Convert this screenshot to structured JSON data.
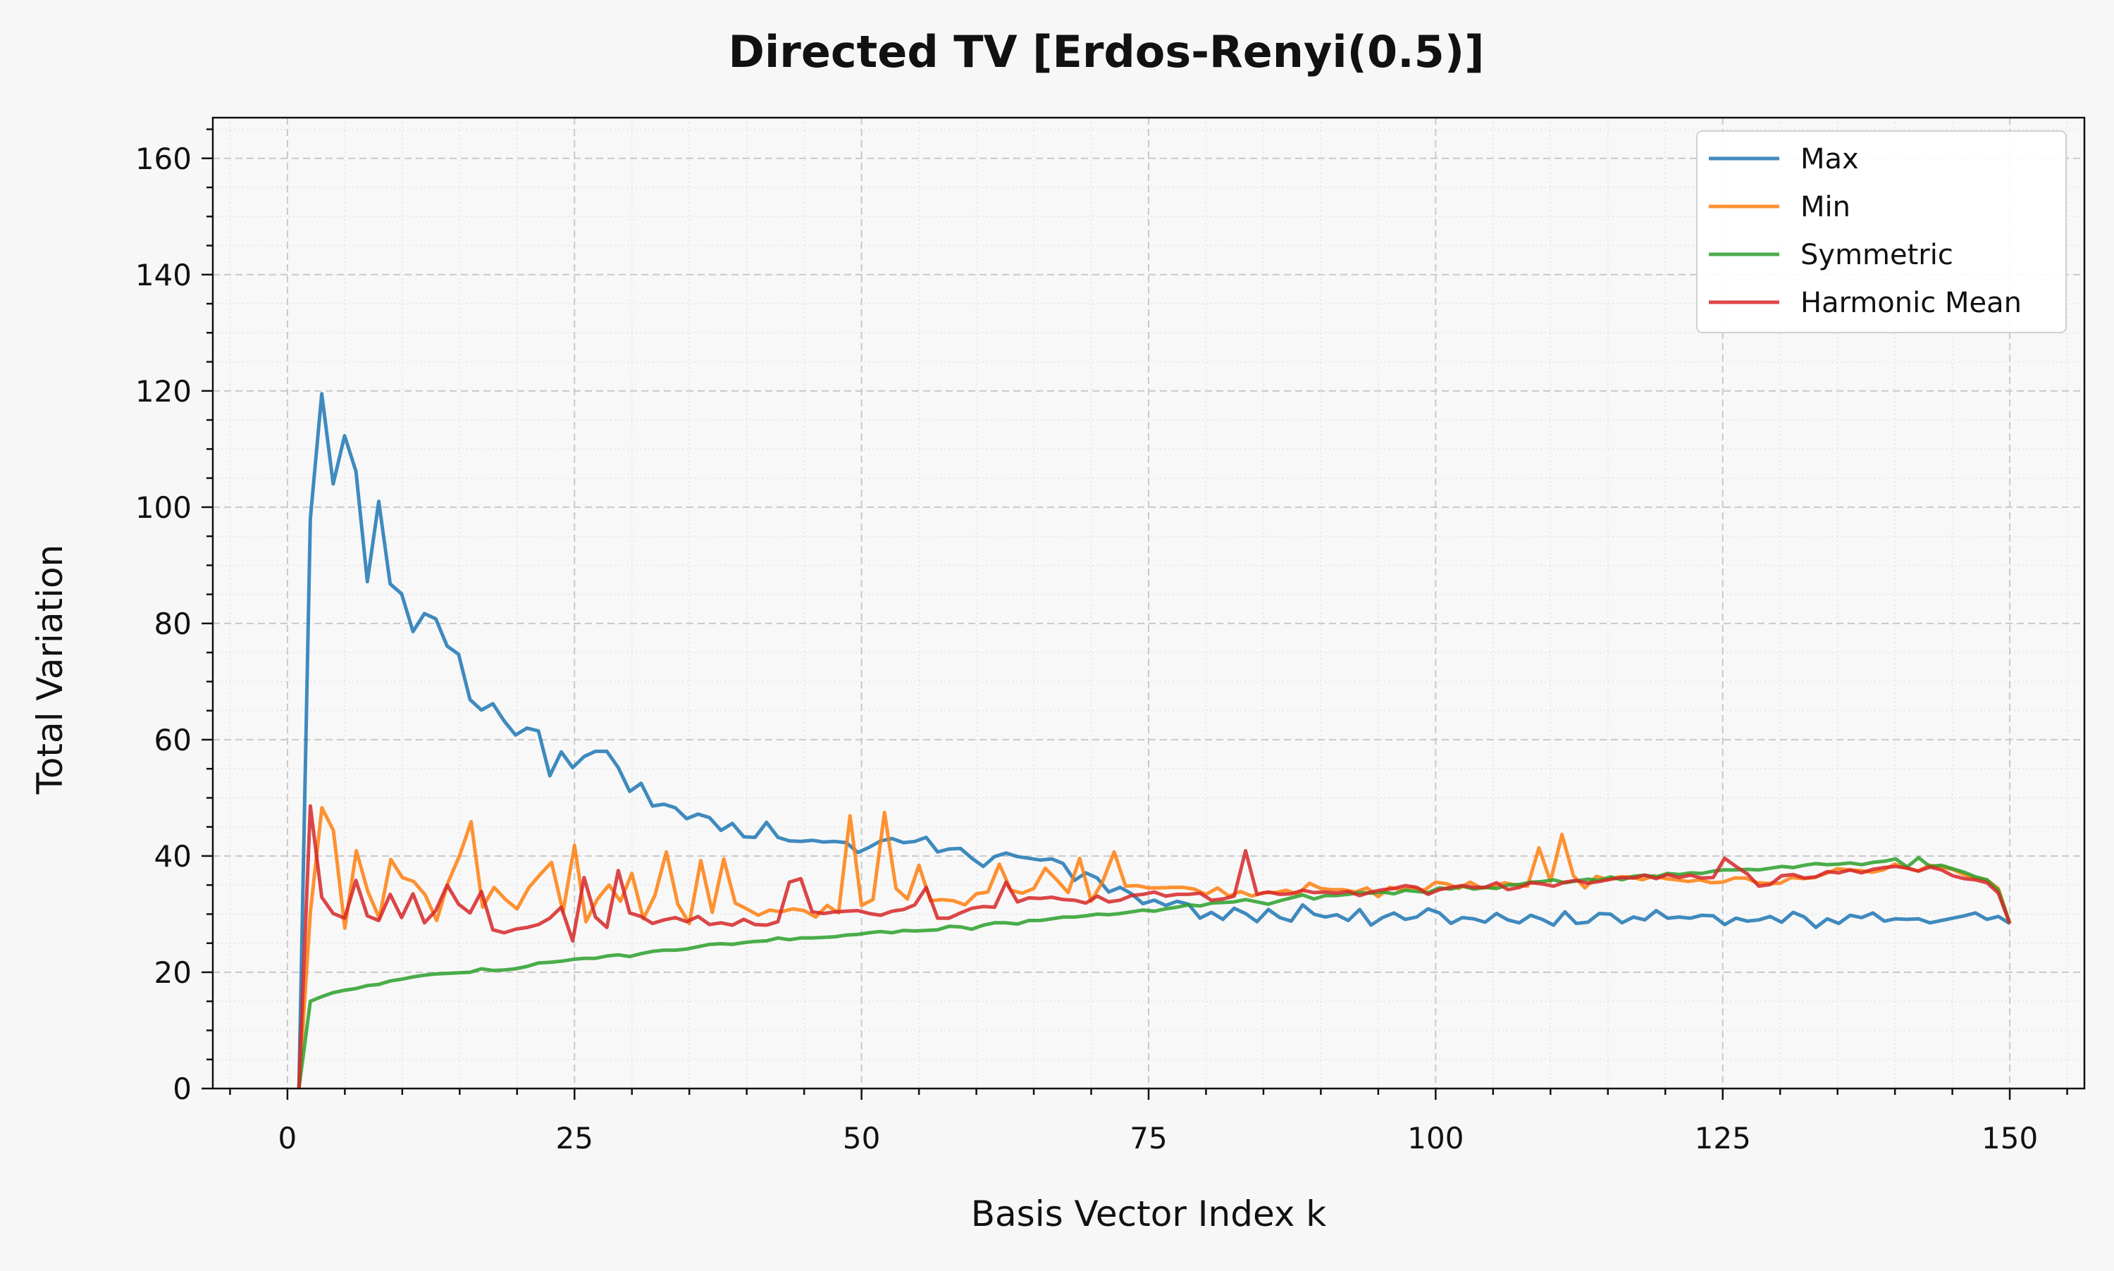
{
  "chart_data": {
    "type": "line",
    "title": "Directed TV [Erdos-Renyi(0.5)]",
    "xlabel": "Basis Vector Index k",
    "ylabel": "Total Variation",
    "xlim": [
      -6.5,
      156.5
    ],
    "ylim": [
      0,
      167
    ],
    "xticks": [
      0,
      25,
      50,
      75,
      100,
      125,
      150
    ],
    "yticks": [
      0,
      20,
      40,
      60,
      80,
      100,
      120,
      140,
      160
    ],
    "grid": true,
    "legend_position": "top-right",
    "x_start": 1,
    "x_end": 150,
    "series": [
      {
        "name": "Max",
        "color": "#1f77b4",
        "values": [
          0,
          98,
          119.5,
          104,
          112.3,
          106.2,
          87.2,
          101,
          86.8,
          85.1,
          78.6,
          81.7,
          80.8,
          76.1,
          74.7,
          66.9,
          65.1,
          66.2,
          63.2,
          60.8,
          62,
          61.5,
          53.8,
          57.9,
          55.2,
          57.1,
          58,
          58,
          55.2,
          51.1,
          52.5,
          48.6,
          48.9,
          48.3,
          46.4,
          47.2,
          46.6,
          44.4,
          45.6,
          43.3,
          43.2,
          45.8,
          43.2,
          42.6,
          42.5,
          42.7,
          42.4,
          42.5,
          42.3,
          40.6,
          41.5,
          42.6,
          43,
          42.3,
          42.5,
          43.2,
          40.7,
          41.2,
          41.3,
          39.6,
          38.2,
          39.9,
          40.5,
          39.9,
          39.6,
          39.3,
          39.5,
          38.7,
          35.8,
          37.1,
          36.2,
          33.8,
          34.6,
          33.5,
          31.8,
          32.4,
          31.5,
          32.2,
          31.7,
          29.3,
          30.3,
          29.1,
          31,
          30.1,
          28.7,
          30.8,
          29.4,
          28.8,
          31.6,
          30,
          29.5,
          29.9,
          28.9,
          30.8,
          28.1,
          29.4,
          30.2,
          29.1,
          29.5,
          30.9,
          30.2,
          28.4,
          29.4,
          29.2,
          28.6,
          30.1,
          29,
          28.5,
          29.8,
          29.1,
          28.1,
          30.4,
          28.4,
          28.6,
          30.1,
          30,
          28.5,
          29.5,
          29,
          30.6,
          29.3,
          29.5,
          29.3,
          29.8,
          29.7,
          28.2,
          29.3,
          28.8,
          29,
          29.6,
          28.6,
          30.3,
          29.5,
          27.7,
          29.2,
          28.4,
          29.8,
          29.4,
          30.2,
          28.8,
          29.2,
          29.1,
          29.2,
          28.5,
          28.9,
          29.3,
          29.7,
          30.2,
          29.1,
          29.6,
          28.4
        ]
      },
      {
        "name": "Min",
        "color": "#ff7f0e",
        "values": [
          0,
          30.4,
          48.3,
          44.4,
          27.6,
          40.9,
          33.9,
          29.3,
          39.4,
          36.3,
          35.6,
          33.3,
          28.9,
          35.5,
          40.1,
          45.9,
          31.2,
          34.6,
          32.5,
          30.9,
          34.5,
          36.8,
          38.9,
          30.4,
          41.8,
          28.7,
          32.6,
          35,
          32.2,
          37,
          29.2,
          33.2,
          40.7,
          31.7,
          28.4,
          39.2,
          30.3,
          39.5,
          31.9,
          30.9,
          29.8,
          30.7,
          30.4,
          30.9,
          30.6,
          29.5,
          31.5,
          30.2,
          46.9,
          31.5,
          32.5,
          47.5,
          34.4,
          32.6,
          38.4,
          32.3,
          32.5,
          32.3,
          31.6,
          33.5,
          33.8,
          38.6,
          34.1,
          33.6,
          34.4,
          37.9,
          35.9,
          33.7,
          39.6,
          32.2,
          35.6,
          40.7,
          34.8,
          34.9,
          34.5,
          34.5,
          34.6,
          34.6,
          34.3,
          33.4,
          34.5,
          33.1,
          33.9,
          33.1,
          33.7,
          33.7,
          34.1,
          33.4,
          35.3,
          34.4,
          34.2,
          34.2,
          33.8,
          34.5,
          33,
          34.6,
          34.2,
          34.6,
          34.1,
          35.5,
          35.2,
          34.4,
          35.5,
          34.5,
          34.6,
          35.4,
          35,
          34.8,
          41.4,
          35.6,
          43.7,
          36.6,
          34.5,
          36.5,
          35.9,
          36.4,
          36.4,
          35.9,
          36.6,
          36.1,
          35.9,
          35.6,
          35.9,
          35.4,
          35.5,
          36.2,
          36.2,
          35.4,
          35.3,
          35.3,
          36.3,
          36.1,
          36.3,
          37,
          37.8,
          37.6,
          37.5,
          37.2,
          37.6,
          38.6,
          38,
          37.4,
          38.4,
          38.1,
          37.7,
          36.8,
          36.2,
          35.9,
          34.4,
          28.4
        ]
      },
      {
        "name": "Symmetric",
        "color": "#2ca02c",
        "values": [
          0,
          15,
          15.8,
          16.5,
          16.9,
          17.2,
          17.7,
          17.9,
          18.5,
          18.8,
          19.2,
          19.5,
          19.7,
          19.8,
          19.9,
          20,
          20.6,
          20.3,
          20.4,
          20.6,
          21,
          21.6,
          21.7,
          21.9,
          22.2,
          22.4,
          22.4,
          22.8,
          23,
          22.7,
          23.2,
          23.6,
          23.8,
          23.8,
          24,
          24.4,
          24.8,
          24.9,
          24.8,
          25.1,
          25.3,
          25.4,
          25.9,
          25.6,
          25.9,
          25.9,
          26,
          26.1,
          26.4,
          26.5,
          26.8,
          27,
          26.8,
          27.2,
          27.1,
          27.2,
          27.3,
          27.9,
          27.8,
          27.4,
          28.1,
          28.5,
          28.5,
          28.3,
          28.9,
          28.9,
          29.2,
          29.5,
          29.5,
          29.7,
          30,
          29.9,
          30.1,
          30.4,
          30.7,
          30.5,
          30.9,
          31.2,
          31.6,
          31.4,
          31.9,
          32,
          32.1,
          32.5,
          32.1,
          31.7,
          32.3,
          32.8,
          33.3,
          32.6,
          33.2,
          33.2,
          33.4,
          33.7,
          33.6,
          33.8,
          33.5,
          34.1,
          33.9,
          33.7,
          34.5,
          34.3,
          34.8,
          34.3,
          34.6,
          34.4,
          35,
          35.1,
          35.5,
          35.6,
          35.9,
          35.4,
          35.7,
          36,
          35.8,
          36.4,
          35.9,
          36.5,
          36.7,
          36.4,
          37,
          36.8,
          37.1,
          37,
          37.4,
          37.6,
          37.6,
          37.7,
          37.6,
          37.9,
          38.2,
          38,
          38.4,
          38.7,
          38.5,
          38.6,
          38.8,
          38.5,
          38.9,
          39.1,
          39.5,
          38.1,
          39.7,
          38.2,
          38.4,
          37.8,
          37.2,
          36.4,
          35.9,
          34.1,
          28.4
        ]
      },
      {
        "name": "Harmonic Mean",
        "color": "#d62728",
        "values": [
          0,
          48.6,
          32.9,
          30.1,
          29.3,
          35.8,
          29.7,
          28.9,
          33.4,
          29.4,
          33.5,
          28.5,
          30.6,
          35,
          31.7,
          30.2,
          33.9,
          27.3,
          26.8,
          27.4,
          27.7,
          28.2,
          29.3,
          31.2,
          25.4,
          36.3,
          29.5,
          27.7,
          37.5,
          30.2,
          29.6,
          28.4,
          29,
          29.4,
          28.7,
          29.6,
          28.2,
          28.5,
          28.1,
          29.1,
          28.2,
          28.1,
          28.7,
          35.5,
          36.1,
          30.4,
          30.1,
          30.4,
          30.5,
          30.6,
          30.1,
          29.8,
          30.5,
          30.8,
          31.6,
          34.6,
          29.3,
          29.3,
          30.2,
          31,
          31.3,
          31.2,
          35.5,
          32.1,
          32.8,
          32.7,
          32.9,
          32.5,
          32.4,
          31.9,
          33.1,
          32.1,
          32.4,
          33.2,
          33.4,
          33.8,
          33.1,
          33.4,
          33.4,
          33.6,
          32.4,
          32.6,
          33.1,
          40.9,
          33.4,
          33.8,
          33.4,
          33.5,
          34.1,
          33.7,
          33.8,
          33.6,
          33.9,
          33.2,
          33.8,
          34.2,
          34.4,
          34.9,
          34.6,
          33.4,
          34.2,
          34.6,
          34.9,
          34.6,
          34.6,
          35.4,
          34.2,
          34.6,
          35.4,
          35.2,
          34.8,
          35.5,
          35.8,
          35.3,
          35.6,
          36,
          36.3,
          36.2,
          36.7,
          36.1,
          36.8,
          36.3,
          36.7,
          36.2,
          36.3,
          39.6,
          38.2,
          36.9,
          34.8,
          35.1,
          36.6,
          36.8,
          36.2,
          36.4,
          37.3,
          37.1,
          37.6,
          37.1,
          37.7,
          38,
          38.2,
          37.9,
          37.4,
          38.1,
          37.6,
          36.6,
          36.1,
          35.9,
          35.4,
          33.6,
          28.4
        ]
      }
    ]
  }
}
